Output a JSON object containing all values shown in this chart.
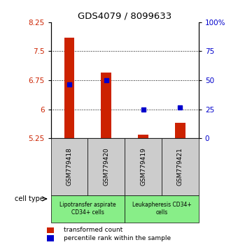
{
  "title": "GDS4079 / 8099633",
  "samples": [
    "GSM779418",
    "GSM779420",
    "GSM779419",
    "GSM779421"
  ],
  "bar_values": [
    7.85,
    6.95,
    5.35,
    5.65
  ],
  "bar_bottom": 5.25,
  "dot_values": [
    6.65,
    6.75,
    6.0,
    6.05
  ],
  "ylim_left": [
    5.25,
    8.25
  ],
  "ylim_right": [
    0,
    100
  ],
  "yticks_left": [
    5.25,
    6.0,
    6.75,
    7.5,
    8.25
  ],
  "ytick_labels_left": [
    "5.25",
    "6",
    "6.75",
    "7.5",
    "8.25"
  ],
  "yticks_right": [
    0,
    25,
    50,
    75,
    100
  ],
  "ytick_labels_right": [
    "0",
    "25",
    "50",
    "75",
    "100%"
  ],
  "grid_values": [
    6.0,
    6.75,
    7.5
  ],
  "bar_color": "#cc2200",
  "dot_color": "#0000cc",
  "group1_label": "Lipotransfer aspirate\nCD34+ cells",
  "group2_label": "Leukapheresis CD34+\ncells",
  "sample_box_color": "#cccccc",
  "group_box_color": "#88ee88",
  "cell_type_label": "cell type",
  "legend_bar_label": "transformed count",
  "legend_dot_label": "percentile rank within the sample",
  "group1_samples": [
    0,
    1
  ],
  "group2_samples": [
    2,
    3
  ]
}
